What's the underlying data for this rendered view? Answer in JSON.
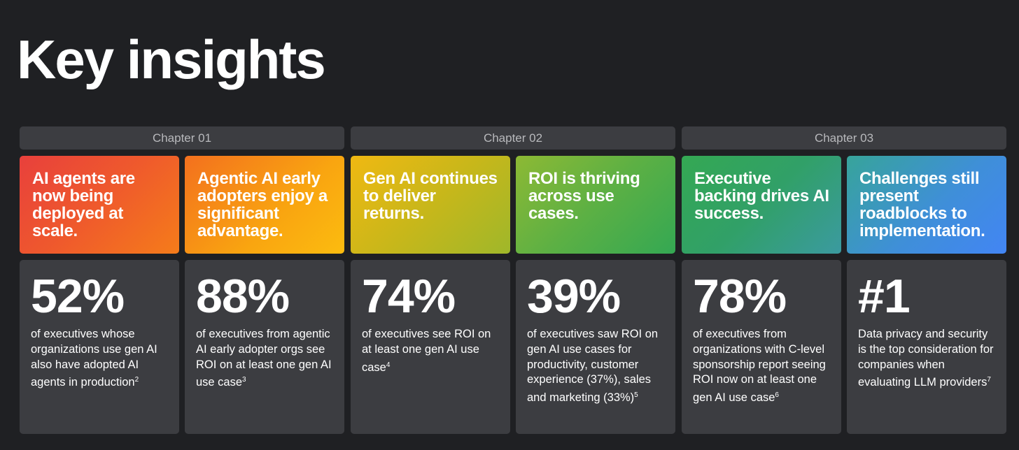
{
  "title": "Key insights",
  "chapters": [
    {
      "label": "Chapter 01"
    },
    {
      "label": "Chapter 02"
    },
    {
      "label": "Chapter 03"
    }
  ],
  "cards": [
    {
      "heading": "AI agents are now being deployed at scale.",
      "stat": "52%",
      "desc": "of executives whose organizations use gen AI also have adopted AI agents in production",
      "footnote": "2",
      "color": "#ea4335"
    },
    {
      "heading": "Agentic AI early adopters enjoy a significant advantage.",
      "stat": "88%",
      "desc": "of executives from agentic AI early adopter orgs see ROI on at least one gen AI use case",
      "footnote": "3",
      "color": "#f9a510"
    },
    {
      "heading": "Gen AI continues to deliver returns.",
      "stat": "74%",
      "desc": "of executives see ROI on at least one gen AI use case",
      "footnote": "4",
      "color": "#c8b71a"
    },
    {
      "heading": "ROI is thriving across use cases.",
      "stat": "39%",
      "desc": "of executives saw ROI on gen AI use cases for productivity, customer experience (37%), sales and marketing (33%)",
      "footnote": "5",
      "color": "#34a853"
    },
    {
      "heading": "Executive backing drives AI success.",
      "stat": "78%",
      "desc": "of executives from organizations with C-level sponsorship report seeing ROI now on at least one gen AI use case",
      "footnote": "6",
      "color": "#31a068"
    },
    {
      "heading": "Challenges still present roadblocks to implementation.",
      "stat": "#1",
      "desc": "Data privacy and security is the top consideration for companies when evaluating LLM providers",
      "footnote": "7",
      "color": "#4285f4"
    }
  ]
}
